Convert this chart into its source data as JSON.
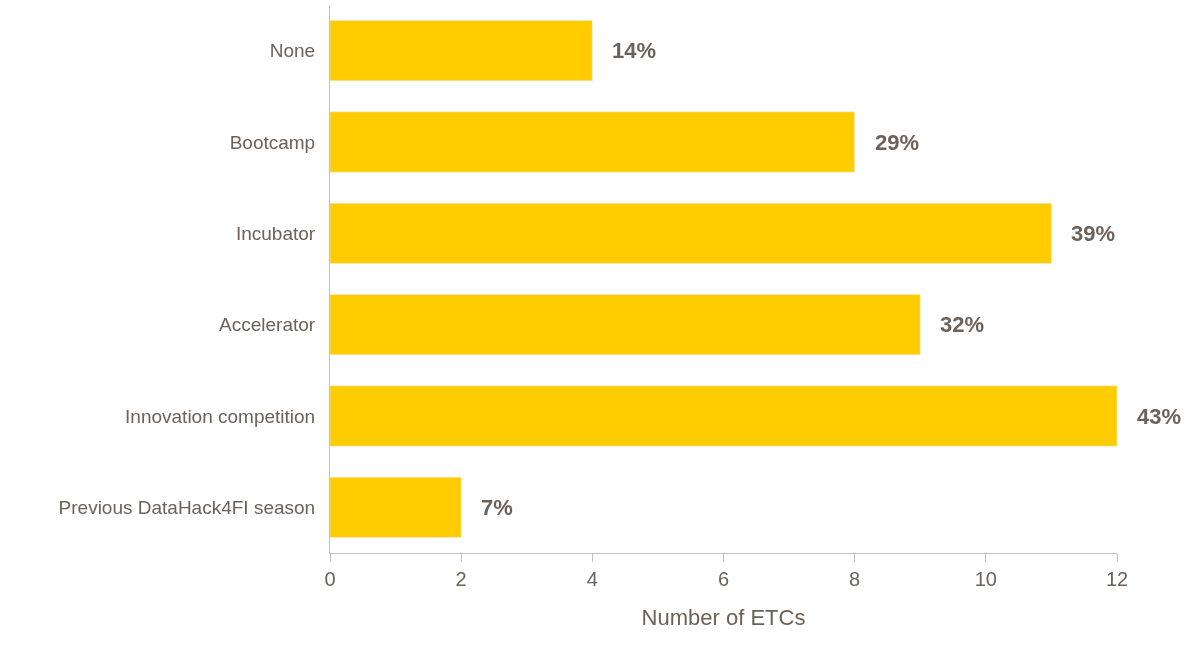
{
  "chart_data": {
    "type": "bar",
    "orientation": "horizontal",
    "xlabel": "Number of ETCs",
    "categories": [
      "None",
      "Bootcamp",
      "Incubator",
      "Accelerator",
      "Innovation competition",
      "Previous DataHack4FI season"
    ],
    "values": [
      4,
      8,
      11,
      9,
      12,
      2
    ],
    "annotations": [
      {
        "text": "14%",
        "x": 4,
        "y": "None"
      },
      {
        "text": "29%",
        "x": 8,
        "y": "Bootcamp"
      },
      {
        "text": "39%",
        "x": 11,
        "y": "Incubator"
      },
      {
        "text": "32%",
        "x": 9,
        "y": "Accelerator"
      },
      {
        "text": "43%",
        "x": 12,
        "y": "Innovation competition"
      },
      {
        "text": "7%",
        "x": 2,
        "y": "Previous DataHack4FI season"
      }
    ],
    "color": "#ffcc00",
    "xlim": [
      0,
      12
    ],
    "xticks": [
      0,
      2,
      4,
      6,
      8,
      10,
      12
    ],
    "legend": false
  }
}
